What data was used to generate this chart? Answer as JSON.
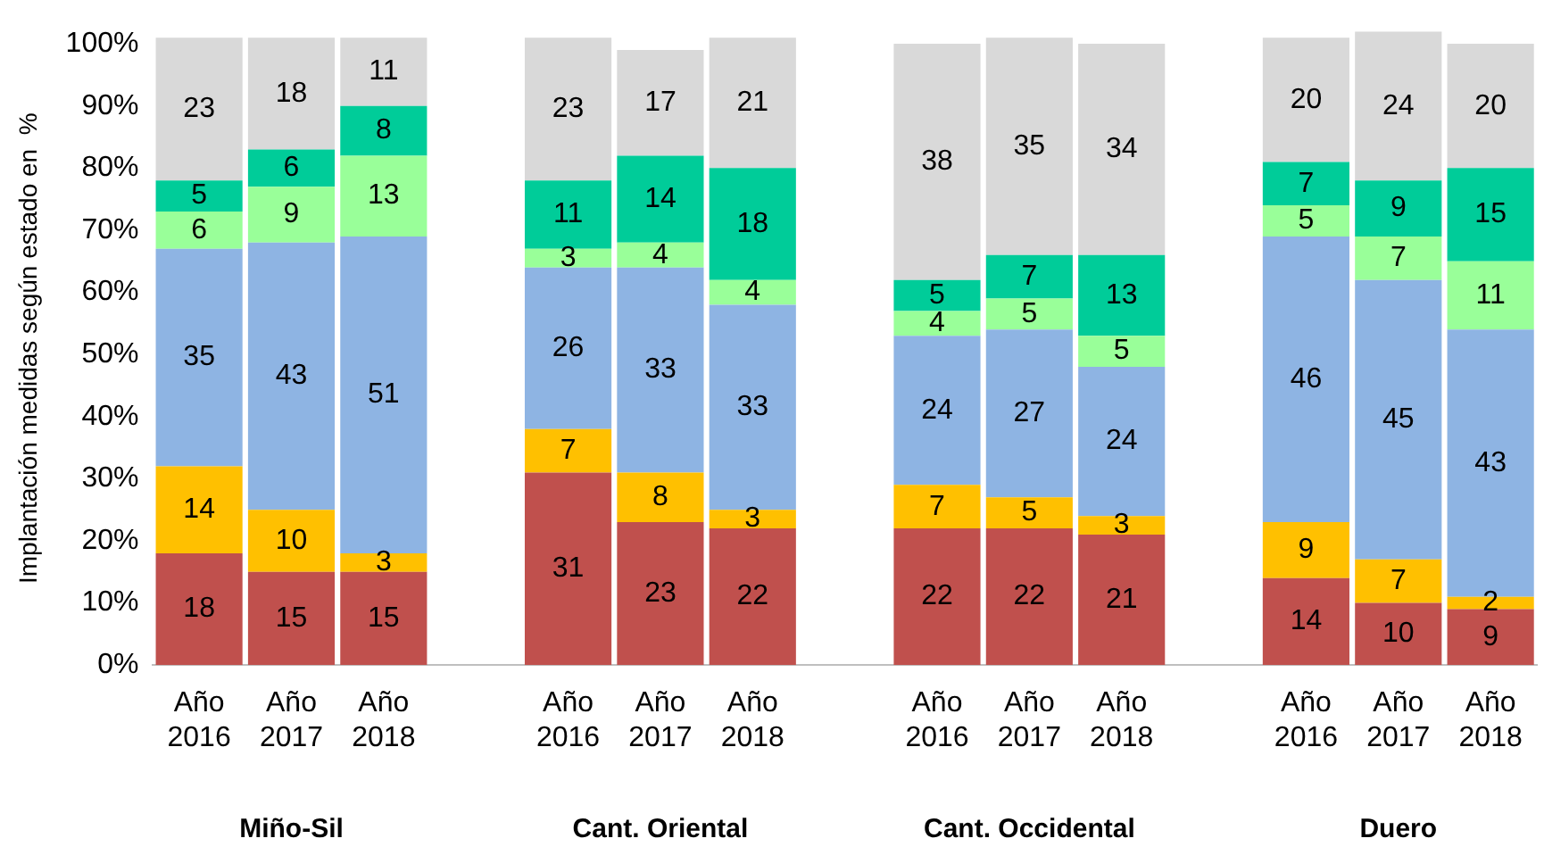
{
  "chart_data": {
    "type": "bar",
    "stacked": true,
    "ylabel": "Implantación medidas según estado en  %",
    "categories": [
      "Año 2016",
      "Año 2017",
      "Año 2018",
      null,
      "Año 2016",
      "Año 2017",
      "Año 2018",
      null,
      "Año 2016",
      "Año 2017",
      "Año 2018",
      null,
      "Año 2016",
      "Año 2017",
      "Año 2018"
    ],
    "series": [
      {
        "color": "#c0504d",
        "values": [
          18,
          15,
          15,
          null,
          31,
          23,
          22,
          null,
          22,
          22,
          21,
          null,
          14,
          10,
          9
        ]
      },
      {
        "color": "#ffc000",
        "values": [
          14,
          10,
          3,
          null,
          7,
          8,
          3,
          null,
          7,
          5,
          3,
          null,
          9,
          7,
          2
        ]
      },
      {
        "color": "#8eb4e3",
        "values": [
          35,
          43,
          51,
          null,
          26,
          33,
          33,
          null,
          24,
          27,
          24,
          null,
          46,
          45,
          43
        ]
      },
      {
        "color": "#99ff99",
        "values": [
          6,
          9,
          13,
          null,
          3,
          4,
          4,
          null,
          4,
          5,
          5,
          null,
          5,
          7,
          11
        ]
      },
      {
        "color": "#00cc99",
        "values": [
          5,
          6,
          8,
          null,
          11,
          14,
          18,
          null,
          5,
          7,
          13,
          null,
          7,
          9,
          15
        ]
      },
      {
        "color": "#d9d9d9",
        "values": [
          23,
          18,
          11,
          null,
          23,
          17,
          21,
          null,
          38,
          35,
          34,
          null,
          20,
          24,
          20
        ]
      }
    ],
    "ylim": [
      0,
      102
    ],
    "yticks": [
      {
        "value": 0,
        "label": "0%"
      },
      {
        "value": 10,
        "label": "10%"
      },
      {
        "value": 20,
        "label": "20%"
      },
      {
        "value": 30,
        "label": "30%"
      },
      {
        "value": 40,
        "label": "40%"
      },
      {
        "value": 50,
        "label": "50%"
      },
      {
        "value": 60,
        "label": "60%"
      },
      {
        "value": 70,
        "label": "70%"
      },
      {
        "value": 80,
        "label": "80%"
      },
      {
        "value": 90,
        "label": "90%"
      },
      {
        "value": 100,
        "label": "100%"
      }
    ],
    "grid": false,
    "legend": false,
    "data_labels": true,
    "annotations": [
      "Miño-Sil",
      "Cant. Oriental",
      "Cant. Occidental",
      "Duero"
    ]
  }
}
